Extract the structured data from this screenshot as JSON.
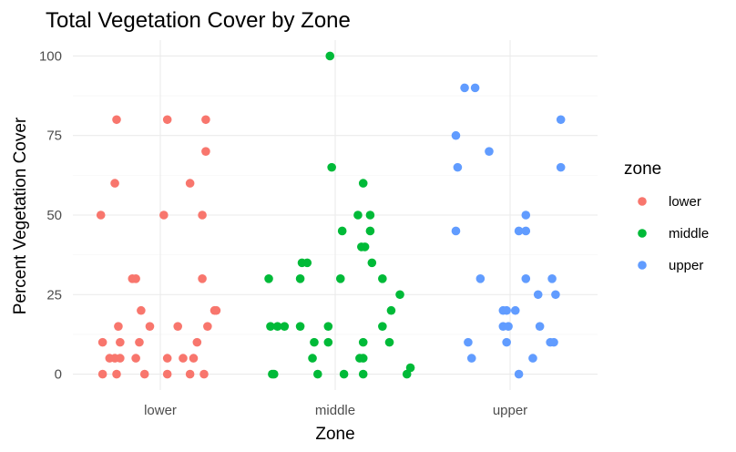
{
  "chart_data": {
    "type": "scatter",
    "title": "Total Vegetation Cover by Zone",
    "xlabel": "Zone",
    "ylabel": "Percent Vegetation Cover",
    "categories": [
      "lower",
      "middle",
      "upper"
    ],
    "ylim": [
      -5,
      105
    ],
    "yticks": [
      0,
      25,
      50,
      75,
      100
    ],
    "grid": true,
    "jitter": true,
    "legend": {
      "title": "zone",
      "position": "right"
    },
    "series": [
      {
        "name": "lower",
        "category": "lower",
        "color": "#F8766D",
        "points": [
          {
            "x": "lower",
            "y": 80,
            "jitter": -0.25
          },
          {
            "x": "lower",
            "y": 80,
            "jitter": 0.04
          },
          {
            "x": "lower",
            "y": 80,
            "jitter": 0.26
          },
          {
            "x": "lower",
            "y": 70,
            "jitter": 0.26
          },
          {
            "x": "lower",
            "y": 60,
            "jitter": -0.26
          },
          {
            "x": "lower",
            "y": 60,
            "jitter": 0.17
          },
          {
            "x": "lower",
            "y": 50,
            "jitter": -0.34
          },
          {
            "x": "lower",
            "y": 50,
            "jitter": 0.02
          },
          {
            "x": "lower",
            "y": 50,
            "jitter": 0.24
          },
          {
            "x": "lower",
            "y": 30,
            "jitter": -0.16
          },
          {
            "x": "lower",
            "y": 30,
            "jitter": -0.14
          },
          {
            "x": "lower",
            "y": 30,
            "jitter": 0.24
          },
          {
            "x": "lower",
            "y": 20,
            "jitter": -0.11
          },
          {
            "x": "lower",
            "y": 20,
            "jitter": 0.31
          },
          {
            "x": "lower",
            "y": 20,
            "jitter": 0.32
          },
          {
            "x": "lower",
            "y": 15,
            "jitter": -0.24
          },
          {
            "x": "lower",
            "y": 15,
            "jitter": -0.06
          },
          {
            "x": "lower",
            "y": 15,
            "jitter": 0.1
          },
          {
            "x": "lower",
            "y": 15,
            "jitter": 0.27
          },
          {
            "x": "lower",
            "y": 10,
            "jitter": -0.33
          },
          {
            "x": "lower",
            "y": 10,
            "jitter": -0.23
          },
          {
            "x": "lower",
            "y": 10,
            "jitter": -0.12
          },
          {
            "x": "lower",
            "y": 10,
            "jitter": 0.21
          },
          {
            "x": "lower",
            "y": 5,
            "jitter": -0.29
          },
          {
            "x": "lower",
            "y": 5,
            "jitter": -0.26
          },
          {
            "x": "lower",
            "y": 5,
            "jitter": -0.23
          },
          {
            "x": "lower",
            "y": 5,
            "jitter": -0.14
          },
          {
            "x": "lower",
            "y": 5,
            "jitter": 0.04
          },
          {
            "x": "lower",
            "y": 5,
            "jitter": 0.13
          },
          {
            "x": "lower",
            "y": 5,
            "jitter": 0.19
          },
          {
            "x": "lower",
            "y": 0,
            "jitter": -0.33
          },
          {
            "x": "lower",
            "y": 0,
            "jitter": -0.25
          },
          {
            "x": "lower",
            "y": 0,
            "jitter": -0.09
          },
          {
            "x": "lower",
            "y": 0,
            "jitter": 0.04
          },
          {
            "x": "lower",
            "y": 0,
            "jitter": 0.17
          },
          {
            "x": "lower",
            "y": 0,
            "jitter": 0.25
          }
        ]
      },
      {
        "name": "middle",
        "category": "middle",
        "color": "#00BA38",
        "points": [
          {
            "x": "middle",
            "y": 100,
            "jitter": -0.03
          },
          {
            "x": "middle",
            "y": 65,
            "jitter": -0.02
          },
          {
            "x": "middle",
            "y": 60,
            "jitter": 0.16
          },
          {
            "x": "middle",
            "y": 50,
            "jitter": 0.13
          },
          {
            "x": "middle",
            "y": 50,
            "jitter": 0.2
          },
          {
            "x": "middle",
            "y": 45,
            "jitter": 0.04
          },
          {
            "x": "middle",
            "y": 45,
            "jitter": 0.2
          },
          {
            "x": "middle",
            "y": 40,
            "jitter": 0.15
          },
          {
            "x": "middle",
            "y": 40,
            "jitter": 0.17
          },
          {
            "x": "middle",
            "y": 35,
            "jitter": -0.19
          },
          {
            "x": "middle",
            "y": 35,
            "jitter": -0.16
          },
          {
            "x": "middle",
            "y": 35,
            "jitter": 0.21
          },
          {
            "x": "middle",
            "y": 30,
            "jitter": -0.38
          },
          {
            "x": "middle",
            "y": 30,
            "jitter": -0.2
          },
          {
            "x": "middle",
            "y": 30,
            "jitter": 0.03
          },
          {
            "x": "middle",
            "y": 30,
            "jitter": 0.27
          },
          {
            "x": "middle",
            "y": 25,
            "jitter": 0.37
          },
          {
            "x": "middle",
            "y": 20,
            "jitter": 0.32
          },
          {
            "x": "middle",
            "y": 15,
            "jitter": -0.37
          },
          {
            "x": "middle",
            "y": 15,
            "jitter": -0.33
          },
          {
            "x": "middle",
            "y": 15,
            "jitter": -0.29
          },
          {
            "x": "middle",
            "y": 15,
            "jitter": -0.2
          },
          {
            "x": "middle",
            "y": 15,
            "jitter": -0.04
          },
          {
            "x": "middle",
            "y": 15,
            "jitter": 0.27
          },
          {
            "x": "middle",
            "y": 10,
            "jitter": -0.12
          },
          {
            "x": "middle",
            "y": 10,
            "jitter": -0.04
          },
          {
            "x": "middle",
            "y": 10,
            "jitter": 0.16
          },
          {
            "x": "middle",
            "y": 10,
            "jitter": 0.31
          },
          {
            "x": "middle",
            "y": 5,
            "jitter": -0.13
          },
          {
            "x": "middle",
            "y": 5,
            "jitter": 0.14
          },
          {
            "x": "middle",
            "y": 5,
            "jitter": 0.16
          },
          {
            "x": "middle",
            "y": 2,
            "jitter": 0.43
          },
          {
            "x": "middle",
            "y": 0,
            "jitter": -0.36
          },
          {
            "x": "middle",
            "y": 0,
            "jitter": -0.35
          },
          {
            "x": "middle",
            "y": 0,
            "jitter": -0.1
          },
          {
            "x": "middle",
            "y": 0,
            "jitter": 0.05
          },
          {
            "x": "middle",
            "y": 0,
            "jitter": 0.16
          },
          {
            "x": "middle",
            "y": 0,
            "jitter": 0.41
          }
        ]
      },
      {
        "name": "upper",
        "category": "upper",
        "color": "#619CFF",
        "points": [
          {
            "x": "upper",
            "y": 90,
            "jitter": -0.26
          },
          {
            "x": "upper",
            "y": 90,
            "jitter": -0.2
          },
          {
            "x": "upper",
            "y": 80,
            "jitter": 0.29
          },
          {
            "x": "upper",
            "y": 75,
            "jitter": -0.31
          },
          {
            "x": "upper",
            "y": 70,
            "jitter": -0.12
          },
          {
            "x": "upper",
            "y": 65,
            "jitter": -0.3
          },
          {
            "x": "upper",
            "y": 65,
            "jitter": 0.29
          },
          {
            "x": "upper",
            "y": 50,
            "jitter": 0.09
          },
          {
            "x": "upper",
            "y": 45,
            "jitter": -0.31
          },
          {
            "x": "upper",
            "y": 45,
            "jitter": 0.05
          },
          {
            "x": "upper",
            "y": 45,
            "jitter": 0.09
          },
          {
            "x": "upper",
            "y": 30,
            "jitter": -0.17
          },
          {
            "x": "upper",
            "y": 30,
            "jitter": 0.09
          },
          {
            "x": "upper",
            "y": 30,
            "jitter": 0.24
          },
          {
            "x": "upper",
            "y": 25,
            "jitter": 0.16
          },
          {
            "x": "upper",
            "y": 25,
            "jitter": 0.26
          },
          {
            "x": "upper",
            "y": 20,
            "jitter": -0.04
          },
          {
            "x": "upper",
            "y": 20,
            "jitter": -0.02
          },
          {
            "x": "upper",
            "y": 20,
            "jitter": 0.03
          },
          {
            "x": "upper",
            "y": 15,
            "jitter": -0.04
          },
          {
            "x": "upper",
            "y": 15,
            "jitter": -0.01
          },
          {
            "x": "upper",
            "y": 15,
            "jitter": 0.17
          },
          {
            "x": "upper",
            "y": 10,
            "jitter": -0.24
          },
          {
            "x": "upper",
            "y": 10,
            "jitter": -0.02
          },
          {
            "x": "upper",
            "y": 10,
            "jitter": 0.23
          },
          {
            "x": "upper",
            "y": 10,
            "jitter": 0.25
          },
          {
            "x": "upper",
            "y": 5,
            "jitter": -0.22
          },
          {
            "x": "upper",
            "y": 5,
            "jitter": 0.13
          },
          {
            "x": "upper",
            "y": 0,
            "jitter": 0.05
          }
        ]
      }
    ]
  }
}
